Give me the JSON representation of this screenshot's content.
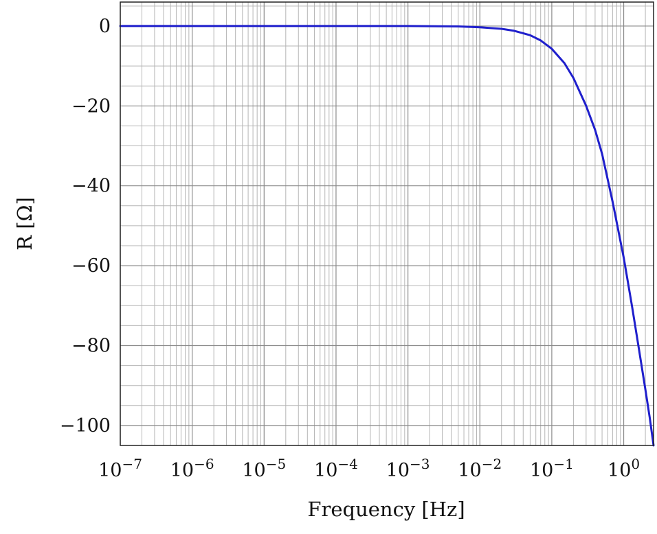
{
  "chart_data": {
    "type": "line",
    "title": "",
    "xlabel": "Frequency [Hz]",
    "ylabel": "R [Ω]",
    "x_scale": "log",
    "xlim": [
      1e-07,
      2.6
    ],
    "ylim": [
      -105,
      6
    ],
    "grid": true,
    "legend": "none",
    "line_color": "#1f1fcc",
    "x_ticks": [
      {
        "base": "10",
        "exp": "−7",
        "value": 1e-07
      },
      {
        "base": "10",
        "exp": "−6",
        "value": 1e-06
      },
      {
        "base": "10",
        "exp": "−5",
        "value": 1e-05
      },
      {
        "base": "10",
        "exp": "−4",
        "value": 0.0001
      },
      {
        "base": "10",
        "exp": "−3",
        "value": 0.001
      },
      {
        "base": "10",
        "exp": "−2",
        "value": 0.01
      },
      {
        "base": "10",
        "exp": "−1",
        "value": 0.1
      },
      {
        "base": "10",
        "exp": "0",
        "value": 1
      }
    ],
    "y_ticks": [
      {
        "label": "0",
        "value": 0
      },
      {
        "label": "−20",
        "value": -20
      },
      {
        "label": "−40",
        "value": -40
      },
      {
        "label": "−60",
        "value": -60
      },
      {
        "label": "−80",
        "value": -80
      },
      {
        "label": "−100",
        "value": -100
      }
    ],
    "series": [
      {
        "x": [
          1e-07,
          1e-06,
          1e-05,
          0.0001,
          0.001,
          0.005,
          0.01,
          0.02,
          0.03,
          0.05,
          0.07,
          0.1,
          0.15,
          0.2,
          0.3,
          0.4,
          0.5,
          0.7,
          1.0,
          1.3,
          1.6,
          2.0,
          2.3,
          2.6
        ],
        "y": [
          0,
          0,
          0,
          0,
          0,
          -0.1,
          -0.3,
          -0.7,
          -1.2,
          -2.3,
          -3.6,
          -5.7,
          -9.3,
          -13,
          -20,
          -26,
          -32,
          -44,
          -58,
          -70,
          -80,
          -91,
          -98,
          -105
        ]
      }
    ]
  }
}
